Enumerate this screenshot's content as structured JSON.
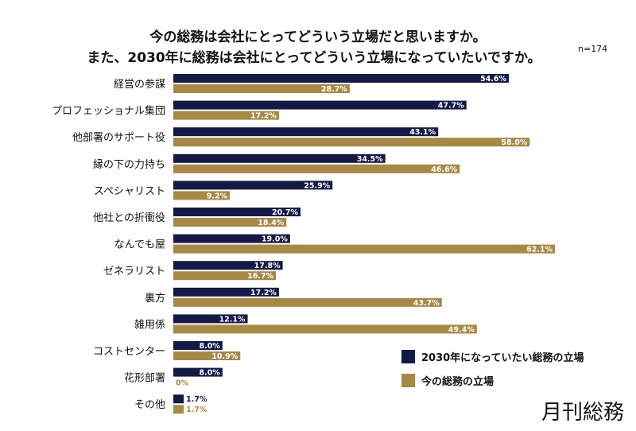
{
  "chart_data": {
    "type": "bar",
    "orientation": "horizontal",
    "title": [
      "今の総務は会社にとってどういう立場だと思いますか。",
      "また、2030年に総務は会社にとってどういう立場になっていたいですか。"
    ],
    "sample_note": "n=174",
    "categories": [
      "経営の参謀",
      "プロフェッショナル集団",
      "他部署のサポート役",
      "縁の下の力持ち",
      "スペシャリスト",
      "他社との折衝役",
      "なんでも屋",
      "ゼネラリスト",
      "裏方",
      "雑用係",
      "コストセンター",
      "花形部署",
      "その他"
    ],
    "series": [
      {
        "name": "2030年になっていたい総務の立場",
        "color": "#141a45",
        "values": [
          54.6,
          47.7,
          43.1,
          34.5,
          25.9,
          20.7,
          19.0,
          17.8,
          17.2,
          12.1,
          8.0,
          8.0,
          1.7
        ]
      },
      {
        "name": "今の総務の立場",
        "color": "#a68947",
        "values": [
          28.7,
          17.2,
          58.0,
          46.6,
          9.2,
          18.4,
          62.1,
          16.7,
          43.7,
          49.4,
          10.9,
          0,
          1.7
        ]
      }
    ],
    "value_format": "%",
    "legend_position": "bottom-right",
    "grid": false
  },
  "logo": "月刊総務"
}
